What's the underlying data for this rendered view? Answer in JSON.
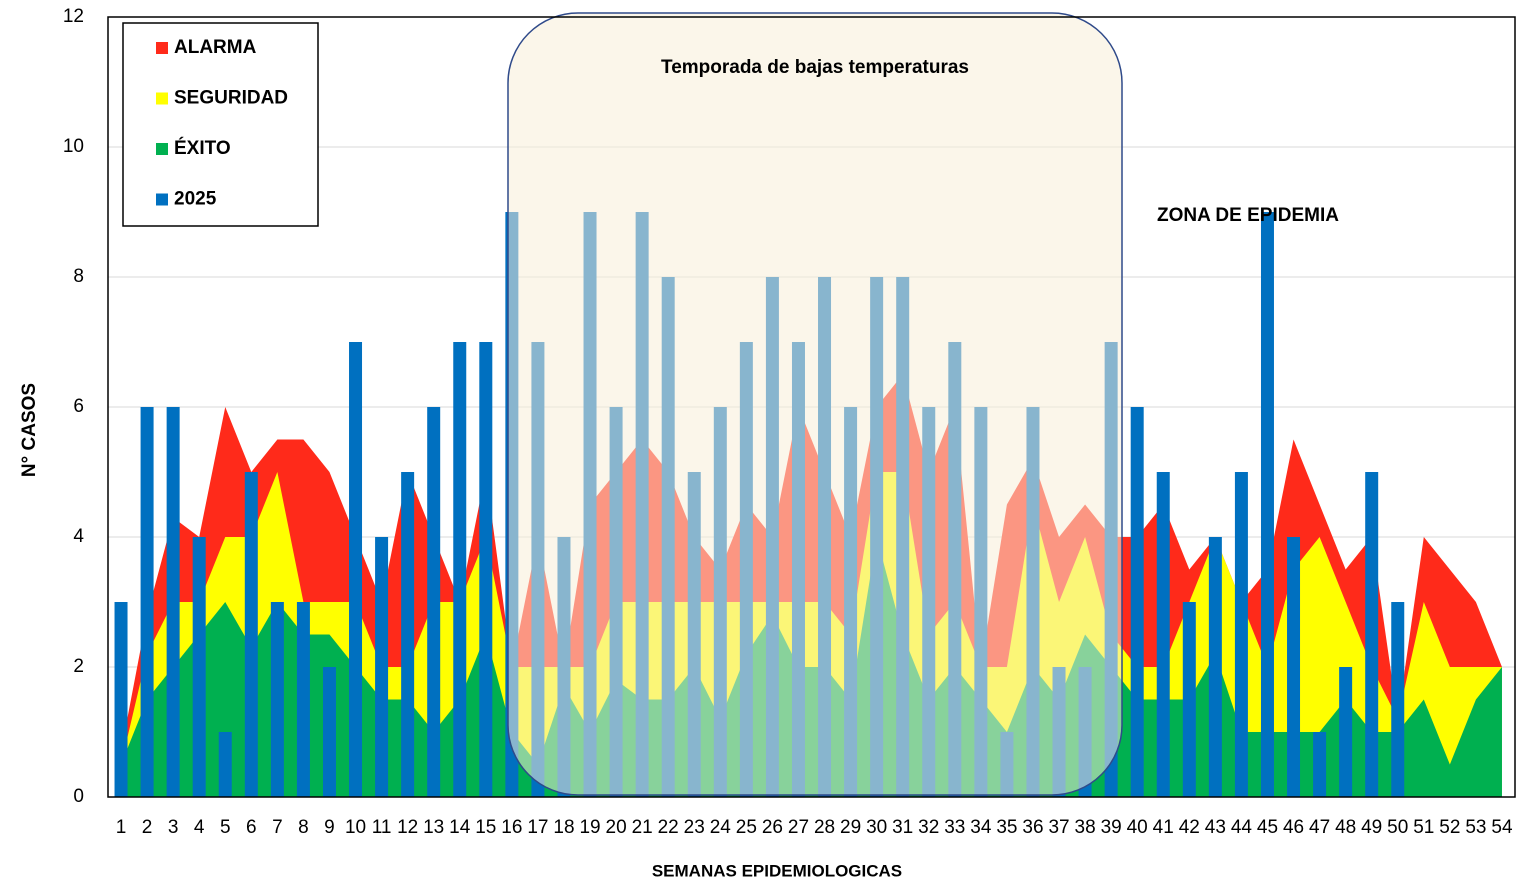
{
  "chart_data": {
    "type": "combo",
    "xlabel": "SEMANAS EPIDEMIOLOGICAS",
    "ylabel": "N° CASOS",
    "annotations": [
      "Temporada de bajas temperaturas",
      "ZONA DE EPIDEMIA"
    ],
    "categories": [
      1,
      2,
      3,
      4,
      5,
      6,
      7,
      8,
      9,
      10,
      11,
      12,
      13,
      14,
      15,
      16,
      17,
      18,
      19,
      20,
      21,
      22,
      23,
      24,
      25,
      26,
      27,
      28,
      29,
      30,
      31,
      32,
      33,
      34,
      35,
      36,
      37,
      38,
      39,
      40,
      41,
      42,
      43,
      44,
      45,
      46,
      47,
      48,
      49,
      50,
      51,
      52,
      53,
      54
    ],
    "ylim": [
      0,
      12
    ],
    "yticks": [
      0,
      2,
      4,
      6,
      8,
      10,
      12
    ],
    "grid": true,
    "legend": "top-left",
    "series": [
      {
        "name": "ALARMA",
        "type": "area",
        "color": "#ff2a1a",
        "values": [
          0.7,
          2.8,
          4.3,
          4,
          6,
          5,
          5.5,
          5.5,
          5,
          4,
          3,
          5,
          4,
          3,
          5,
          2,
          4,
          2,
          4.5,
          5,
          5.5,
          5,
          4,
          3.5,
          4.5,
          4,
          6,
          5,
          4,
          6,
          6.5,
          5,
          6,
          2,
          4.5,
          5.2,
          4,
          4.5,
          4,
          4,
          4.5,
          3.5,
          4,
          3,
          3.5,
          5.5,
          4.5,
          3.5,
          4,
          1.2,
          4,
          3.5,
          3,
          2
        ]
      },
      {
        "name": "SEGURIDAD",
        "type": "area",
        "color": "#ffff00",
        "values": [
          0.5,
          2.2,
          3,
          3,
          4,
          4,
          5,
          3,
          3,
          3,
          2,
          2,
          3,
          3,
          4,
          2,
          2,
          2,
          2,
          3,
          3,
          3,
          3,
          3,
          3,
          3,
          3,
          3,
          2.5,
          5,
          5,
          2.5,
          3,
          2,
          2,
          4.5,
          3,
          4,
          2.5,
          2,
          2,
          3,
          4,
          3,
          2,
          3.5,
          4,
          3,
          2,
          1.2,
          3,
          2,
          2,
          2
        ]
      },
      {
        "name": "ÉXITO",
        "type": "area",
        "color": "#00b050",
        "values": [
          0.5,
          1.5,
          2,
          2.5,
          3,
          2.3,
          3,
          2.5,
          2.5,
          2,
          1.5,
          1.5,
          1,
          1.5,
          2.5,
          1,
          0.5,
          1.7,
          1,
          1.8,
          1.5,
          1.5,
          2,
          1.2,
          2.2,
          2.8,
          2,
          2,
          1.5,
          4,
          2.5,
          1.5,
          2,
          1.5,
          1,
          2,
          1.5,
          2.5,
          2,
          1.5,
          1.5,
          1.5,
          2.2,
          1,
          1,
          1,
          1,
          1.5,
          1,
          1,
          1.5,
          0.5,
          1.5,
          2
        ]
      },
      {
        "name": "2025",
        "type": "bar",
        "color": "#0070c0",
        "values": [
          3,
          6,
          6,
          4,
          1,
          5,
          3,
          3,
          2,
          7,
          4,
          5,
          6,
          7,
          7,
          9,
          7,
          4,
          9,
          6,
          9,
          8,
          5,
          6,
          7,
          8,
          7,
          8,
          6,
          8,
          8,
          6,
          7,
          6,
          1,
          6,
          2,
          2,
          7,
          6,
          5,
          3,
          4,
          5,
          9,
          4,
          1,
          2,
          5,
          3,
          null,
          null,
          null,
          null
        ]
      }
    ]
  }
}
